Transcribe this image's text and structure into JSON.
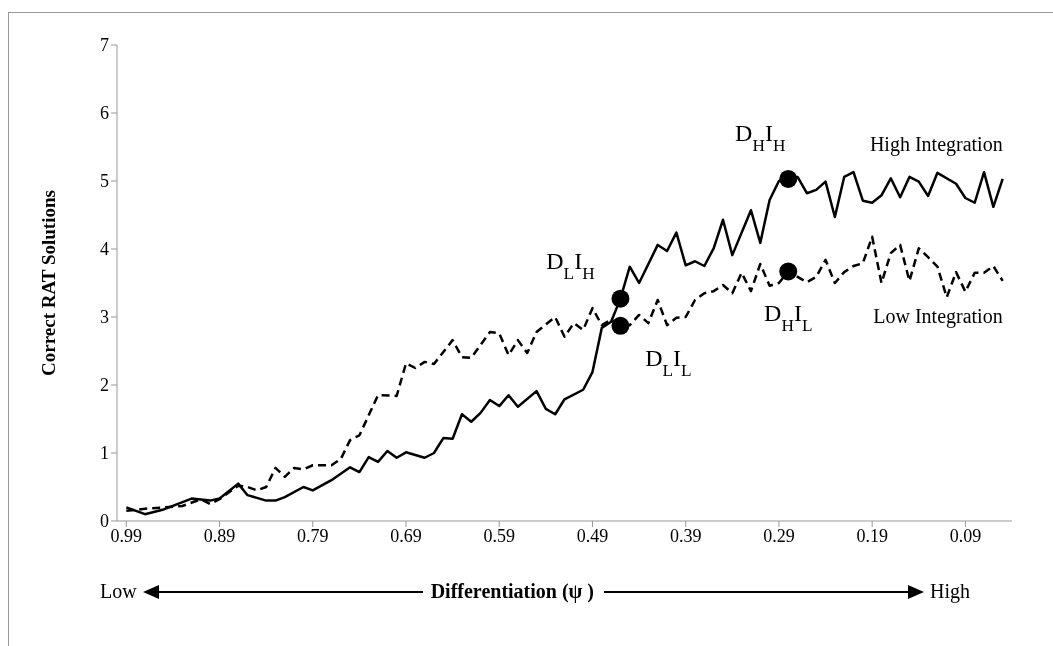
{
  "chart_data": {
    "type": "line",
    "xlabel": "Differentiation (ψ )",
    "ylabel": "Correct RAT Solutions",
    "xlim": [
      1.0,
      0.04
    ],
    "xticks": [
      0.99,
      0.89,
      0.79,
      0.69,
      0.59,
      0.49,
      0.39,
      0.29,
      0.19,
      0.09
    ],
    "ylim": [
      0,
      7
    ],
    "yticks": [
      0,
      1,
      2,
      3,
      4,
      5,
      6,
      7
    ],
    "grid": false,
    "series": [
      {
        "name": "High Integration",
        "color": "#000000",
        "line_style": "solid",
        "x": [
          0.99,
          0.97,
          0.95,
          0.92,
          0.9,
          0.89,
          0.87,
          0.86,
          0.84,
          0.83,
          0.82,
          0.8,
          0.79,
          0.77,
          0.75,
          0.74,
          0.73,
          0.72,
          0.71,
          0.7,
          0.69,
          0.67,
          0.66,
          0.65,
          0.64,
          0.63,
          0.62,
          0.61,
          0.6,
          0.59,
          0.58,
          0.57,
          0.55,
          0.54,
          0.53,
          0.52,
          0.5,
          0.49,
          0.48,
          0.47,
          0.46,
          0.45,
          0.44,
          0.42,
          0.41,
          0.4,
          0.39,
          0.38,
          0.37,
          0.36,
          0.35,
          0.34,
          0.32,
          0.31,
          0.3,
          0.29,
          0.28,
          0.27,
          0.26,
          0.25,
          0.24,
          0.23,
          0.22,
          0.21,
          0.2,
          0.19,
          0.18,
          0.17,
          0.16,
          0.15,
          0.14,
          0.13,
          0.12,
          0.1,
          0.09,
          0.08,
          0.07,
          0.06,
          0.05
        ],
        "values": [
          0.2,
          0.1,
          0.17,
          0.33,
          0.3,
          0.33,
          0.55,
          0.38,
          0.3,
          0.3,
          0.35,
          0.5,
          0.45,
          0.6,
          0.79,
          0.72,
          0.94,
          0.87,
          1.03,
          0.93,
          1.01,
          0.93,
          1.0,
          1.22,
          1.21,
          1.57,
          1.46,
          1.59,
          1.78,
          1.69,
          1.85,
          1.68,
          1.91,
          1.65,
          1.57,
          1.79,
          1.93,
          2.19,
          2.84,
          2.93,
          3.27,
          3.74,
          3.5,
          4.06,
          3.97,
          4.24,
          3.76,
          3.82,
          3.75,
          4.01,
          4.43,
          3.91,
          4.57,
          4.09,
          4.72,
          5.0,
          5.03,
          5.06,
          4.82,
          4.87,
          4.99,
          4.47,
          5.06,
          5.13,
          4.71,
          4.68,
          4.79,
          5.04,
          4.76,
          5.06,
          4.99,
          4.78,
          5.12,
          4.96,
          4.75,
          4.68,
          5.13,
          4.62,
          5.03
        ]
      },
      {
        "name": "Low Integration",
        "color": "#000000",
        "line_style": "dashed",
        "x": [
          0.99,
          0.97,
          0.95,
          0.93,
          0.91,
          0.9,
          0.89,
          0.87,
          0.86,
          0.85,
          0.84,
          0.83,
          0.82,
          0.81,
          0.8,
          0.79,
          0.77,
          0.76,
          0.75,
          0.74,
          0.72,
          0.7,
          0.69,
          0.68,
          0.67,
          0.66,
          0.64,
          0.63,
          0.62,
          0.6,
          0.59,
          0.58,
          0.57,
          0.56,
          0.55,
          0.53,
          0.52,
          0.51,
          0.5,
          0.49,
          0.48,
          0.47,
          0.46,
          0.45,
          0.44,
          0.43,
          0.42,
          0.41,
          0.4,
          0.39,
          0.38,
          0.37,
          0.36,
          0.35,
          0.34,
          0.33,
          0.32,
          0.31,
          0.3,
          0.29,
          0.28,
          0.26,
          0.25,
          0.24,
          0.23,
          0.22,
          0.21,
          0.2,
          0.19,
          0.18,
          0.17,
          0.16,
          0.15,
          0.14,
          0.13,
          0.12,
          0.11,
          0.1,
          0.09,
          0.08,
          0.07,
          0.06,
          0.05
        ],
        "values": [
          0.15,
          0.18,
          0.2,
          0.22,
          0.32,
          0.25,
          0.32,
          0.52,
          0.5,
          0.45,
          0.5,
          0.78,
          0.65,
          0.78,
          0.76,
          0.82,
          0.82,
          0.91,
          1.19,
          1.26,
          1.85,
          1.84,
          2.32,
          2.25,
          2.34,
          2.31,
          2.66,
          2.41,
          2.4,
          2.78,
          2.76,
          2.44,
          2.66,
          2.47,
          2.78,
          3.0,
          2.71,
          2.91,
          2.81,
          3.13,
          2.88,
          2.96,
          2.87,
          2.88,
          3.03,
          2.91,
          3.25,
          2.88,
          2.99,
          3.0,
          3.25,
          3.35,
          3.38,
          3.47,
          3.35,
          3.65,
          3.38,
          3.78,
          3.46,
          3.5,
          3.67,
          3.51,
          3.59,
          3.84,
          3.5,
          3.66,
          3.75,
          3.79,
          4.18,
          3.5,
          3.94,
          4.06,
          3.53,
          4.01,
          3.88,
          3.74,
          3.29,
          3.66,
          3.37,
          3.65,
          3.65,
          3.75,
          3.53
        ]
      },
      {
        "type": "scatter",
        "color": "#000000",
        "marker": "circle",
        "x": [
          0.46,
          0.46,
          0.28,
          0.28
        ],
        "values": [
          3.27,
          2.87,
          5.03,
          3.67
        ]
      }
    ],
    "annotations": [
      "D$_{L}$I$_{H}$",
      "D$_{L}$I$_{L}$",
      "D$_{H}$I$_{H}$",
      "D$_{H}$I$_{L}$",
      "Low",
      "High"
    ]
  }
}
